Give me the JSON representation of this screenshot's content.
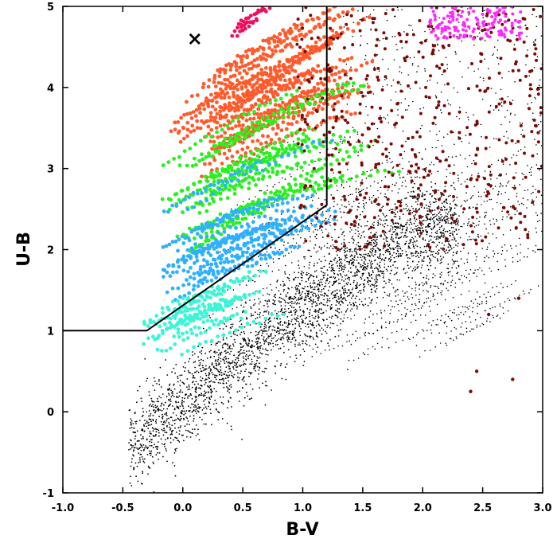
{
  "chart_data": {
    "type": "scatter",
    "title": "",
    "xlabel": "B-V",
    "ylabel": "U-B",
    "xlim": [
      -1.0,
      3.0
    ],
    "ylim": [
      -1,
      5
    ],
    "xticks": [
      "-1.0",
      "-0.5",
      "0.0",
      "0.5",
      "1.0",
      "1.5",
      "2.0",
      "2.5",
      "3.0"
    ],
    "xtick_values": [
      -1.0,
      -0.5,
      0.0,
      0.5,
      1.0,
      1.5,
      2.0,
      2.5,
      3.0
    ],
    "yticks": [
      "-1",
      "0",
      "1",
      "2",
      "3",
      "4",
      "5"
    ],
    "ytick_values": [
      -1,
      0,
      1,
      2,
      3,
      4,
      5
    ],
    "grid": false,
    "legend": "none",
    "boundary_line": {
      "color": "#000000",
      "points": [
        [
          -1.0,
          1.0
        ],
        [
          -0.3,
          1.0
        ],
        [
          1.2,
          2.55
        ],
        [
          1.2,
          5.0
        ]
      ]
    },
    "marker": {
      "symbol": "×",
      "x": 0.1,
      "y": 4.6,
      "color": "#000000"
    },
    "series": [
      {
        "color": "#000000",
        "cloud": {
          "n": 2600,
          "x_range": [
            -0.45,
            2.3
          ],
          "center_line": [
            [
              -0.4,
              -0.4
            ],
            [
              0.3,
              0.5
            ],
            [
              1.0,
              1.3
            ],
            [
              2.0,
              2.3
            ]
          ],
          "spread": 0.55
        },
        "streaks": {
          "n": 70,
          "x_start": [
            0.2,
            2.2
          ],
          "y_start": [
            0.6,
            3.0
          ],
          "slope": [
            0.6,
            0.9
          ],
          "length": [
            0.5,
            1.3
          ],
          "pts": 18
        },
        "upper_right": {
          "n": 600,
          "x_range": [
            1.3,
            3.0
          ],
          "y_range": [
            1.8,
            5.0
          ]
        }
      },
      {
        "color": "#ff5a2c",
        "band": {
          "n": 30,
          "x0": [
            -0.1,
            0.5
          ],
          "y0": [
            2.8,
            4.2
          ],
          "slope": [
            0.8,
            1.25
          ],
          "len": [
            0.7,
            1.4
          ],
          "pts": 30
        }
      },
      {
        "color": "#29f01e",
        "band": {
          "n": 22,
          "x0": [
            -0.2,
            0.4
          ],
          "y0": [
            1.9,
            3.3
          ],
          "slope": [
            0.7,
            1.1
          ],
          "len": [
            0.6,
            1.6
          ],
          "pts": 26
        }
      },
      {
        "color": "#2eb0ff",
        "band": {
          "n": 20,
          "x0": [
            -0.2,
            0.2
          ],
          "y0": [
            1.3,
            2.5
          ],
          "slope": [
            0.6,
            1.0
          ],
          "len": [
            0.6,
            1.4
          ],
          "pts": 24
        }
      },
      {
        "color": "#3bf5d6",
        "band": {
          "n": 14,
          "x0": [
            -0.35,
            0.0
          ],
          "y0": [
            0.7,
            1.3
          ],
          "slope": [
            0.55,
            0.9
          ],
          "len": [
            0.4,
            1.0
          ],
          "pts": 18
        }
      },
      {
        "color": "#7a0c05",
        "scatter": {
          "n": 450,
          "x_range": [
            0.95,
            3.0
          ],
          "y_range": [
            2.0,
            5.0
          ]
        },
        "far": [
          [
            2.45,
            0.5
          ],
          [
            2.4,
            0.25
          ],
          [
            2.75,
            0.4
          ],
          [
            2.55,
            1.2
          ],
          [
            2.8,
            1.4
          ]
        ]
      },
      {
        "color": "#ee0f60",
        "band": {
          "n": 6,
          "x0": [
            0.35,
            0.65
          ],
          "y0": [
            4.6,
            4.95
          ],
          "slope": [
            0.5,
            0.9
          ],
          "len": [
            0.05,
            0.2
          ],
          "pts": 6
        }
      },
      {
        "color": "#ff29ff",
        "scatter": {
          "n": 140,
          "x_range": [
            2.05,
            2.85
          ],
          "y_range": [
            4.6,
            5.0
          ]
        }
      }
    ]
  }
}
